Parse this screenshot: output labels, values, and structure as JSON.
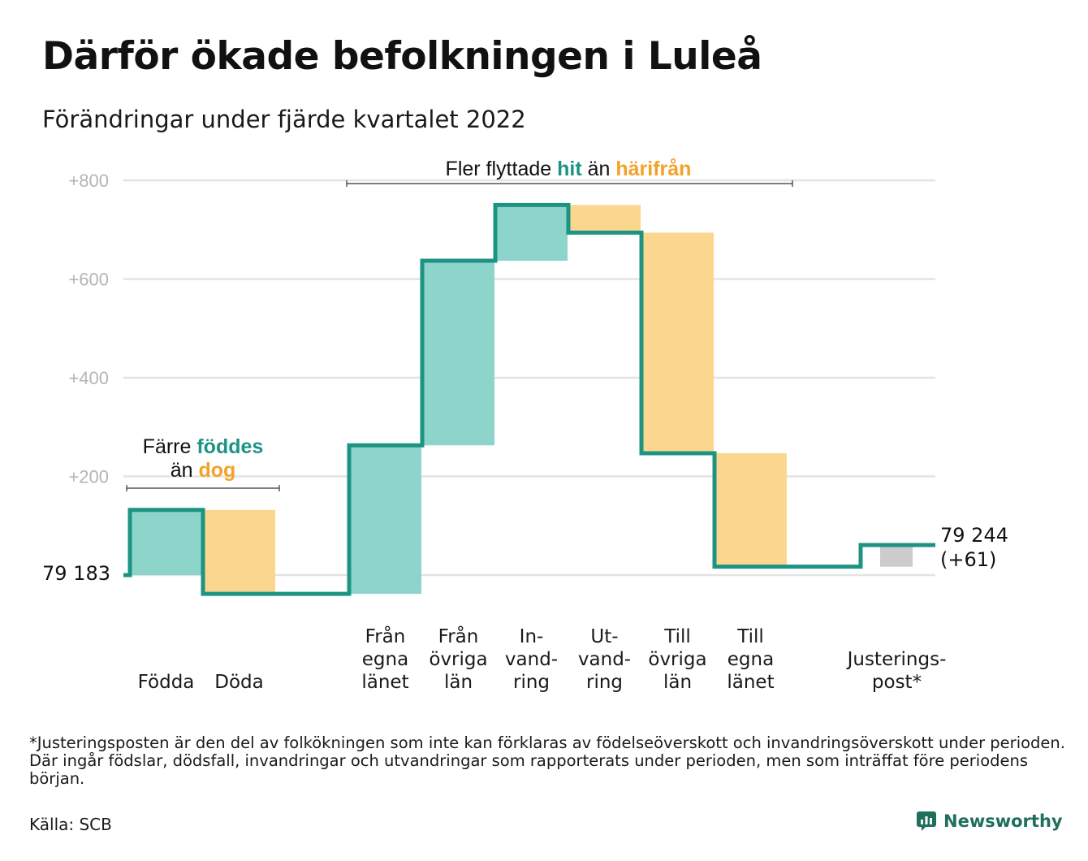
{
  "header": {
    "title": "Därför ökade befolkningen i Luleå",
    "subtitle": "Förändringar under fjärde kvartalet 2022"
  },
  "colors": {
    "increase": "#8dd4cb",
    "decrease": "#fbd68f",
    "adjustment": "#cccccc",
    "line": "#1d9483",
    "grid": "#e3e3e3",
    "accent_teal": "#1d9483",
    "accent_orange": "#f2a227"
  },
  "annotations": {
    "births": {
      "line1_pre": "Färre ",
      "line1_em": "föddes",
      "line2_pre": "än ",
      "line2_em": "dog"
    },
    "migration": {
      "pre": "Fler flyttade ",
      "em1": "hit",
      "mid": " än ",
      "em2": "härifrån"
    }
  },
  "chart_data": {
    "type": "waterfall",
    "title": "Därför ökade befolkningen i Luleå",
    "subtitle": "Förändringar under fjärde kvartalet 2022",
    "yticks": [
      "+800",
      "+600",
      "+400",
      "+200"
    ],
    "ytick_values": [
      800,
      600,
      400,
      200
    ],
    "ylim": [
      -40,
      820
    ],
    "baseline_value": 0,
    "start": {
      "value": 0,
      "label": "79 183"
    },
    "end": {
      "value": 61,
      "label_line1": "79 244",
      "label_line2": "(+61)"
    },
    "steps": [
      {
        "name": "Födda",
        "label_lines": [
          "Födda"
        ],
        "from": 0,
        "to": 132,
        "kind": "increase"
      },
      {
        "name": "Döda",
        "label_lines": [
          "Döda"
        ],
        "from": 132,
        "to": -38,
        "kind": "decrease"
      },
      {
        "name": "gap",
        "label_lines": [],
        "from": -38,
        "to": -38,
        "kind": "none"
      },
      {
        "name": "Från egna länet",
        "label_lines": [
          "Från",
          "egna",
          "länet"
        ],
        "from": -38,
        "to": 263,
        "kind": "increase"
      },
      {
        "name": "Från övriga län",
        "label_lines": [
          "Från",
          "övriga",
          "län"
        ],
        "from": 263,
        "to": 637,
        "kind": "increase"
      },
      {
        "name": "Invandring",
        "label_lines": [
          "In-",
          "vand-",
          "ring"
        ],
        "from": 637,
        "to": 750,
        "kind": "increase"
      },
      {
        "name": "Utvandring",
        "label_lines": [
          "Ut-",
          "vand-",
          "ring"
        ],
        "from": 750,
        "to": 694,
        "kind": "decrease"
      },
      {
        "name": "Till övriga län",
        "label_lines": [
          "Till",
          "övriga",
          "län"
        ],
        "from": 694,
        "to": 247,
        "kind": "decrease"
      },
      {
        "name": "Till egna länet",
        "label_lines": [
          "Till",
          "egna",
          "länet"
        ],
        "from": 247,
        "to": 17,
        "kind": "decrease"
      },
      {
        "name": "gap",
        "label_lines": [],
        "from": 17,
        "to": 17,
        "kind": "none"
      },
      {
        "name": "Justeringspost*",
        "label_lines": [
          "Justerings-",
          "post*"
        ],
        "from": 17,
        "to": 61,
        "kind": "adjustment"
      }
    ]
  },
  "footer": {
    "footnote": "*Justeringsposten är den del av folkökningen som inte kan förklaras av födelseöverskott och invandringsöverskott under perioden. Där ingår födslar, dödsfall, invandringar och utvandringar som rapporterats under perioden, men som inträffat före periodens början.",
    "source": "Källa: SCB",
    "brand": "Newsworthy",
    "brand_icon": "newsworthy-logo-icon"
  }
}
